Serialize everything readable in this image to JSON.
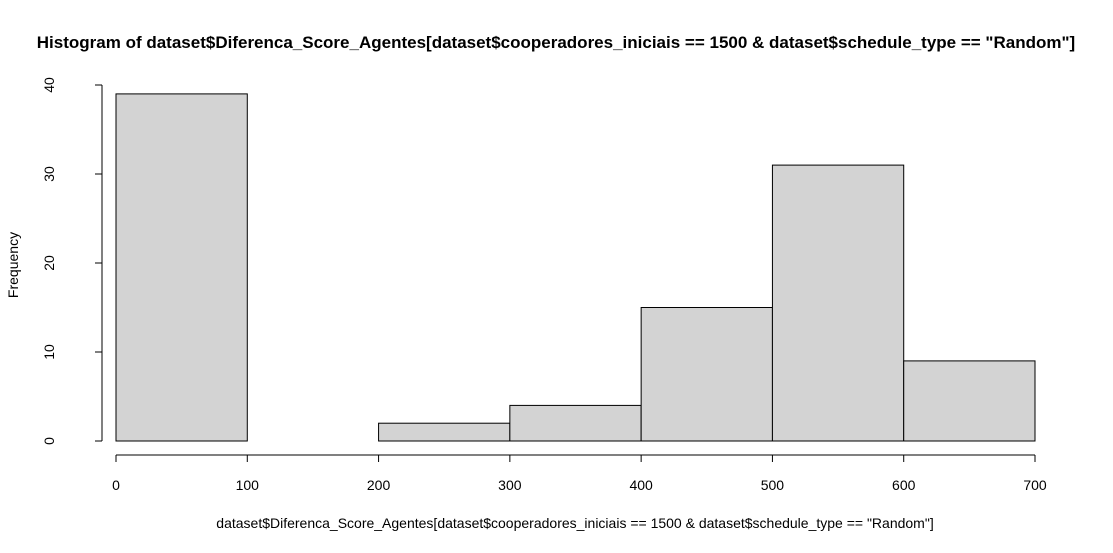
{
  "chart_data": {
    "type": "bar",
    "title": "Histogram of dataset$Diferenca_Score_Agentes[dataset$cooperadores_iniciais == 1500 & dataset$schedule_type == \"Random\"]",
    "xlabel": "dataset$Diferenca_Score_Agentes[dataset$cooperadores_iniciais == 1500 & dataset$schedule_type == \"Random\"]",
    "ylabel": "Frequency",
    "bins": [
      {
        "from": 0,
        "to": 100,
        "count": 39
      },
      {
        "from": 100,
        "to": 200,
        "count": 0
      },
      {
        "from": 200,
        "to": 300,
        "count": 2
      },
      {
        "from": 300,
        "to": 400,
        "count": 4
      },
      {
        "from": 400,
        "to": 500,
        "count": 15
      },
      {
        "from": 500,
        "to": 600,
        "count": 31
      },
      {
        "from": 600,
        "to": 700,
        "count": 9
      }
    ],
    "xlim": [
      0,
      700
    ],
    "ylim": [
      0,
      40
    ],
    "x_ticks": [
      0,
      100,
      200,
      300,
      400,
      500,
      600,
      700
    ],
    "y_ticks": [
      0,
      10,
      20,
      30,
      40
    ],
    "grid": false
  }
}
